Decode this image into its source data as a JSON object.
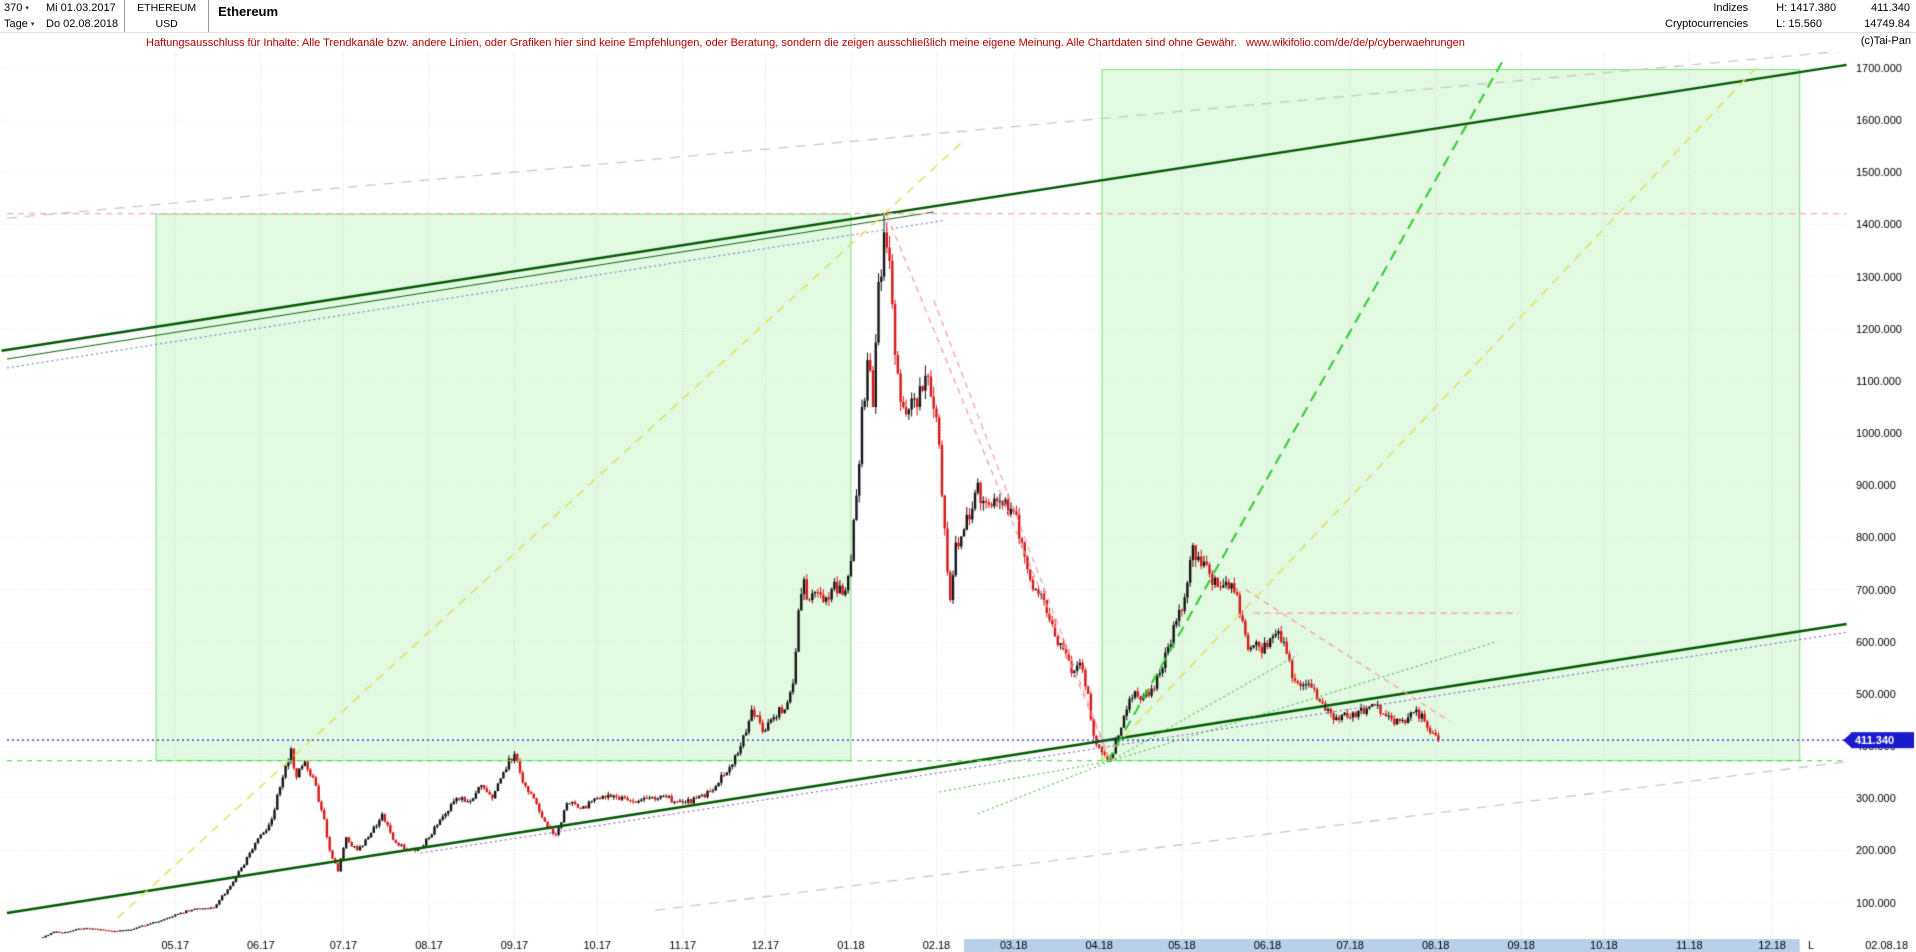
{
  "header": {
    "bars_count": "370",
    "caret": "▾",
    "period": "Tage",
    "date_from": "Mi 01.03.2017",
    "date_to": "Do 02.08.2018",
    "symbol": "ETHEREUM",
    "currency": "USD",
    "title": "Ethereum",
    "group1": "Indizes",
    "group2": "Cryptocurrencies",
    "high_label": "H: 1417.380",
    "low_label": "L: 15.560",
    "price_top": "411.340",
    "price_bottom": "14749.84",
    "copyright": "(c)Tai-Pan"
  },
  "disclaimer": {
    "text": "Haftungsausschluss für Inhalte: Alle Trendkanäle bzw. andere Linien, oder Grafiken hier sind keine Empfehlungen, oder Beratung, sondern die zeigen ausschließlich meine eigene Meinung. Alle Chartdaten sind ohne Gewähr.",
    "url": "www.wikifolio.com/de/de/p/cyberwaehrungen"
  },
  "chart_data": {
    "type": "candlestick",
    "title": "Ethereum",
    "symbol": "ETHEREUM",
    "currency": "USD",
    "period": "Tage",
    "bars": "370",
    "range": {
      "from": "Mi 01.03.2017",
      "to": "Do 02.08.2018"
    },
    "high": 1417.38,
    "low": 15.56,
    "last": 411.34,
    "last_label": "411.340",
    "ylim": [
      30,
      1730
    ],
    "grid": true,
    "yticks": [
      {
        "v": 1700,
        "label": "1700.000"
      },
      {
        "v": 1600,
        "label": "1600.000"
      },
      {
        "v": 1500,
        "label": "1500.000"
      },
      {
        "v": 1400,
        "label": "1400.000"
      },
      {
        "v": 1300,
        "label": "1300.000"
      },
      {
        "v": 1200,
        "label": "1200.000"
      },
      {
        "v": 1100,
        "label": "1100.000"
      },
      {
        "v": 1000,
        "label": "1000.000"
      },
      {
        "v": 900,
        "label": "900.000"
      },
      {
        "v": 800,
        "label": "800.000"
      },
      {
        "v": 700,
        "label": "700.000"
      },
      {
        "v": 600,
        "label": "600.000"
      },
      {
        "v": 500,
        "label": "500.000"
      },
      {
        "v": 400,
        "label": "400.000"
      },
      {
        "v": 300,
        "label": "300.000"
      },
      {
        "v": 200,
        "label": "200.000"
      },
      {
        "v": 100,
        "label": "100.000"
      }
    ],
    "xticks": [
      {
        "day": 61,
        "label": "05.17"
      },
      {
        "day": 92,
        "label": "06.17"
      },
      {
        "day": 122,
        "label": "07.17"
      },
      {
        "day": 153,
        "label": "08.17"
      },
      {
        "day": 184,
        "label": "09.17"
      },
      {
        "day": 214,
        "label": "10.17"
      },
      {
        "day": 245,
        "label": "11.17"
      },
      {
        "day": 275,
        "label": "12.17"
      },
      {
        "day": 306,
        "label": "01.18"
      },
      {
        "day": 337,
        "label": "02.18"
      },
      {
        "day": 365,
        "label": "03.18"
      },
      {
        "day": 396,
        "label": "04.18"
      },
      {
        "day": 426,
        "label": "05.18"
      },
      {
        "day": 457,
        "label": "06.18"
      },
      {
        "day": 487,
        "label": "07.18"
      },
      {
        "day": 518,
        "label": "08.18"
      },
      {
        "day": 549,
        "label": "09.18"
      },
      {
        "day": 579,
        "label": "10.18"
      },
      {
        "day": 610,
        "label": "11.18"
      },
      {
        "day": 640,
        "label": "12.18"
      }
    ],
    "x_last": {
      "marker": "L",
      "label": "02.08.18"
    },
    "volatility": 0.03,
    "wick": 0.018,
    "anchors": [
      [
        0,
        16
      ],
      [
        6,
        20
      ],
      [
        12,
        30
      ],
      [
        17,
        44
      ],
      [
        20,
        42
      ],
      [
        26,
        50
      ],
      [
        31,
        50
      ],
      [
        38,
        45
      ],
      [
        45,
        48
      ],
      [
        52,
        60
      ],
      [
        58,
        70
      ],
      [
        61,
        77
      ],
      [
        68,
        88
      ],
      [
        75,
        90
      ],
      [
        80,
        125
      ],
      [
        84,
        160
      ],
      [
        88,
        195
      ],
      [
        92,
        230
      ],
      [
        96,
        260
      ],
      [
        100,
        340
      ],
      [
        103,
        395
      ],
      [
        105,
        340
      ],
      [
        108,
        370
      ],
      [
        111,
        340
      ],
      [
        115,
        260
      ],
      [
        117,
        200
      ],
      [
        120,
        160
      ],
      [
        123,
        225
      ],
      [
        127,
        200
      ],
      [
        131,
        225
      ],
      [
        136,
        270
      ],
      [
        140,
        220
      ],
      [
        145,
        200
      ],
      [
        150,
        205
      ],
      [
        153,
        225
      ],
      [
        158,
        265
      ],
      [
        163,
        300
      ],
      [
        168,
        295
      ],
      [
        172,
        325
      ],
      [
        176,
        300
      ],
      [
        180,
        350
      ],
      [
        184,
        385
      ],
      [
        187,
        330
      ],
      [
        191,
        300
      ],
      [
        196,
        245
      ],
      [
        199,
        230
      ],
      [
        203,
        290
      ],
      [
        208,
        280
      ],
      [
        214,
        300
      ],
      [
        220,
        305
      ],
      [
        226,
        295
      ],
      [
        232,
        300
      ],
      [
        238,
        305
      ],
      [
        245,
        292
      ],
      [
        250,
        300
      ],
      [
        256,
        315
      ],
      [
        262,
        360
      ],
      [
        266,
        400
      ],
      [
        270,
        470
      ],
      [
        273,
        445
      ],
      [
        275,
        430
      ],
      [
        278,
        455
      ],
      [
        282,
        470
      ],
      [
        285,
        520
      ],
      [
        287,
        660
      ],
      [
        289,
        720
      ],
      [
        291,
        680
      ],
      [
        294,
        695
      ],
      [
        297,
        685
      ],
      [
        300,
        715
      ],
      [
        303,
        690
      ],
      [
        306,
        755
      ],
      [
        308,
        880
      ],
      [
        310,
        1050
      ],
      [
        312,
        1140
      ],
      [
        314,
        1050
      ],
      [
        316,
        1290
      ],
      [
        318,
        1385
      ],
      [
        320,
        1330
      ],
      [
        322,
        1150
      ],
      [
        324,
        1060
      ],
      [
        327,
        1045
      ],
      [
        330,
        1050
      ],
      [
        333,
        1110
      ],
      [
        335,
        1070
      ],
      [
        337,
        1030
      ],
      [
        339,
        880
      ],
      [
        342,
        680
      ],
      [
        344,
        790
      ],
      [
        347,
        815
      ],
      [
        350,
        855
      ],
      [
        352,
        905
      ],
      [
        354,
        870
      ],
      [
        357,
        860
      ],
      [
        360,
        870
      ],
      [
        365,
        850
      ],
      [
        368,
        790
      ],
      [
        372,
        700
      ],
      [
        376,
        680
      ],
      [
        380,
        610
      ],
      [
        383,
        585
      ],
      [
        386,
        540
      ],
      [
        389,
        560
      ],
      [
        392,
        500
      ],
      [
        394,
        420
      ],
      [
        397,
        388
      ],
      [
        400,
        378
      ],
      [
        403,
        420
      ],
      [
        406,
        470
      ],
      [
        409,
        505
      ],
      [
        412,
        495
      ],
      [
        415,
        510
      ],
      [
        418,
        540
      ],
      [
        421,
        590
      ],
      [
        424,
        640
      ],
      [
        427,
        685
      ],
      [
        430,
        785
      ],
      [
        433,
        745
      ],
      [
        436,
        730
      ],
      [
        439,
        705
      ],
      [
        442,
        715
      ],
      [
        445,
        695
      ],
      [
        448,
        640
      ],
      [
        450,
        585
      ],
      [
        453,
        600
      ],
      [
        457,
        590
      ],
      [
        460,
        615
      ],
      [
        463,
        600
      ],
      [
        466,
        530
      ],
      [
        469,
        515
      ],
      [
        472,
        520
      ],
      [
        475,
        490
      ],
      [
        478,
        468
      ],
      [
        481,
        450
      ],
      [
        484,
        460
      ],
      [
        487,
        455
      ],
      [
        490,
        468
      ],
      [
        493,
        472
      ],
      [
        496,
        478
      ],
      [
        499,
        462
      ],
      [
        502,
        452
      ],
      [
        505,
        448
      ],
      [
        508,
        455
      ],
      [
        511,
        470
      ],
      [
        513,
        462
      ],
      [
        515,
        435
      ],
      [
        517,
        425
      ],
      [
        519,
        411.34
      ]
    ],
    "extremes": {
      "high_day": 318,
      "high": 1417.38,
      "low_day": 0,
      "low": 15.56
    },
    "zones": [
      {
        "name": "trend-zone-2017",
        "from_day": 54,
        "to_day": 306,
        "from_price": 372,
        "to_price": 1420
      },
      {
        "name": "trend-zone-2018",
        "from_day": 397,
        "to_day": 650,
        "from_price": 372,
        "to_price": 1697
      }
    ],
    "lines": [
      {
        "name": "channel-top",
        "color": "#005a00",
        "width": 2.5,
        "dash": [],
        "pts": [
          [
            -2,
            1158
          ],
          [
            667,
            1706
          ]
        ]
      },
      {
        "name": "channel-top-inner",
        "color": "#0a6a0a",
        "width": 1,
        "dash": [],
        "pts": [
          [
            0,
            1142
          ],
          [
            336,
            1424
          ]
        ]
      },
      {
        "name": "channel-top-dotted",
        "color": "#6677cc",
        "width": 1,
        "dash": [
          2,
          3
        ],
        "pts": [
          [
            0,
            1125
          ],
          [
            340,
            1408
          ]
        ]
      },
      {
        "name": "channel-bottom",
        "color": "#005a00",
        "width": 2.5,
        "dash": [],
        "pts": [
          [
            0,
            80
          ],
          [
            667,
            634
          ]
        ]
      },
      {
        "name": "channel-bottom-dotted",
        "color": "#7755bb",
        "width": 1,
        "dash": [
          2,
          3
        ],
        "pts": [
          [
            150,
            195
          ],
          [
            667,
            618
          ]
        ]
      },
      {
        "name": "fan-yellow-left",
        "color": "#e2e25a",
        "width": 1.5,
        "dash": [
          9,
          7
        ],
        "pts": [
          [
            40,
            70
          ],
          [
            347,
            1561
          ]
        ]
      },
      {
        "name": "fan-yellow-right",
        "color": "#e2e25a",
        "width": 1.5,
        "dash": [
          9,
          7
        ],
        "pts": [
          [
            397,
            373
          ],
          [
            635,
            1705
          ]
        ]
      },
      {
        "name": "fan-green-steep",
        "color": "#2ecc2e",
        "width": 2,
        "dash": [
          11,
          7
        ],
        "pts": [
          [
            399,
            370
          ],
          [
            543,
            1720
          ]
        ]
      },
      {
        "name": "down-pink-1",
        "color": "#ff9aa2",
        "width": 1.2,
        "dash": [
          6,
          5
        ],
        "pts": [
          [
            319,
            1418
          ],
          [
            400,
            372
          ]
        ]
      },
      {
        "name": "down-pink-2",
        "color": "#ff9aa2",
        "width": 1.2,
        "dash": [
          6,
          5
        ],
        "pts": [
          [
            336,
            1255
          ],
          [
            400,
            372
          ]
        ]
      },
      {
        "name": "resistance-pink-top",
        "color": "#ffaab0",
        "width": 1.2,
        "dash": [
          6,
          5
        ],
        "pts": [
          [
            0,
            1421
          ],
          [
            667,
            1421
          ]
        ]
      },
      {
        "name": "resistance-pink-mid",
        "color": "#ff9aa2",
        "width": 1.2,
        "dash": [
          6,
          5
        ],
        "pts": [
          [
            452,
            655
          ],
          [
            548,
            655
          ]
        ]
      },
      {
        "name": "down-pink-3",
        "color": "#ff9aa2",
        "width": 1.2,
        "dash": [
          6,
          5
        ],
        "pts": [
          [
            449,
            700
          ],
          [
            523,
            448
          ]
        ]
      },
      {
        "name": "current-price-dotted",
        "color": "#2222dd",
        "width": 1.4,
        "dash": [
          2,
          3
        ],
        "pts": [
          [
            0,
            411.34
          ],
          [
            667,
            411.34
          ]
        ]
      },
      {
        "name": "support-green-dashed",
        "color": "#55dd55",
        "width": 1.2,
        "dash": [
          5,
          5
        ],
        "pts": [
          [
            0,
            372
          ],
          [
            667,
            372
          ]
        ]
      },
      {
        "name": "gray-upper",
        "color": "#c9c9c9",
        "width": 1.3,
        "dash": [
          10,
          8
        ],
        "pts": [
          [
            0,
            1412
          ],
          [
            667,
            1733
          ]
        ]
      },
      {
        "name": "gray-lower",
        "color": "#c9c9c9",
        "width": 1.3,
        "dash": [
          10,
          8
        ],
        "pts": [
          [
            235,
            85
          ],
          [
            667,
            370
          ]
        ]
      },
      {
        "name": "wedge-green-1",
        "color": "#33bb33",
        "width": 1,
        "dash": [
          2,
          3
        ],
        "pts": [
          [
            352,
            270
          ],
          [
            400,
            371
          ]
        ]
      },
      {
        "name": "wedge-green-2",
        "color": "#33bb33",
        "width": 1,
        "dash": [
          2,
          3
        ],
        "pts": [
          [
            338,
            312
          ],
          [
            400,
            371
          ]
        ]
      },
      {
        "name": "wedge-green-3",
        "color": "#33bb33",
        "width": 1,
        "dash": [
          2,
          3
        ],
        "pts": [
          [
            400,
            371
          ],
          [
            468,
            575
          ]
        ]
      },
      {
        "name": "wedge-green-4",
        "color": "#33bb33",
        "width": 1,
        "dash": [
          2,
          3
        ],
        "pts": [
          [
            400,
            371
          ],
          [
            540,
            600
          ]
        ]
      }
    ],
    "scrollbar": {
      "from_day": 347,
      "to_day": 650
    },
    "colors": {
      "up": "#151515",
      "down": "#d81818",
      "grid_v": "#d9d9d9",
      "grid_h": "#ececec",
      "zone_fill": "rgba(190,242,190,0.45)",
      "zone_stroke": "rgba(110,220,110,0.85)",
      "axis_text": "#000000",
      "tag_bg": "#1a1acc",
      "tag_text": "#ffffff",
      "scroll_band": "#b9cfe9"
    }
  }
}
